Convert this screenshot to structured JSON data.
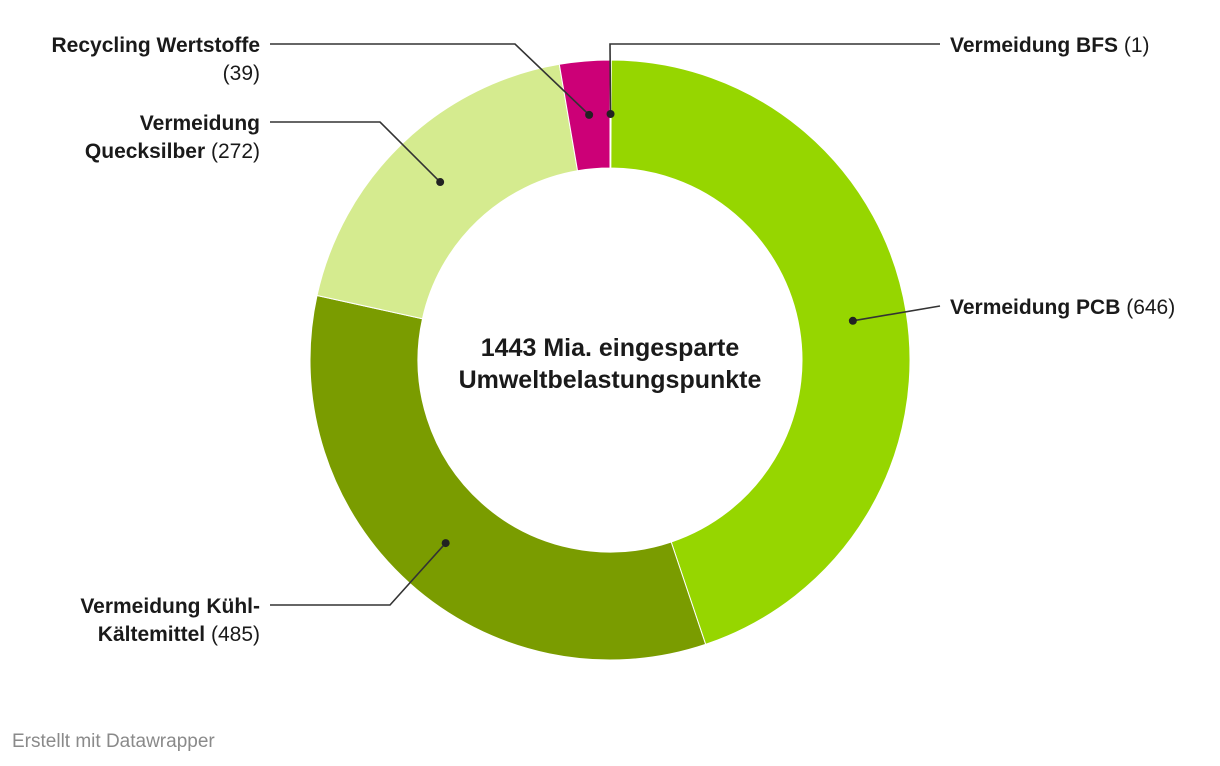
{
  "chart_data": {
    "type": "pie",
    "variant": "donut",
    "center_text": [
      "1443 Mia. eingesparte",
      "Umweltbelastungspunkte"
    ],
    "slices": [
      {
        "id": "bfs",
        "label_lines": [
          "Vermeidung BFS"
        ],
        "value": 1,
        "color": "#f4b6cf"
      },
      {
        "id": "pcb",
        "label_lines": [
          "Vermeidung PCB"
        ],
        "value": 646,
        "color": "#96d600"
      },
      {
        "id": "kuehl",
        "label_lines": [
          "Vermeidung Kühl-",
          "Kältemittel"
        ],
        "value": 485,
        "color": "#7a9c00"
      },
      {
        "id": "hg",
        "label_lines": [
          "Vermeidung",
          "Quecksilber"
        ],
        "value": 272,
        "color": "#d5eb8f"
      },
      {
        "id": "recycling",
        "label_lines": [
          "Recycling Wertstoffe"
        ],
        "value": 39,
        "color": "#cc0077"
      }
    ]
  },
  "footer": {
    "credit": "Erstellt mit Datawrapper"
  }
}
